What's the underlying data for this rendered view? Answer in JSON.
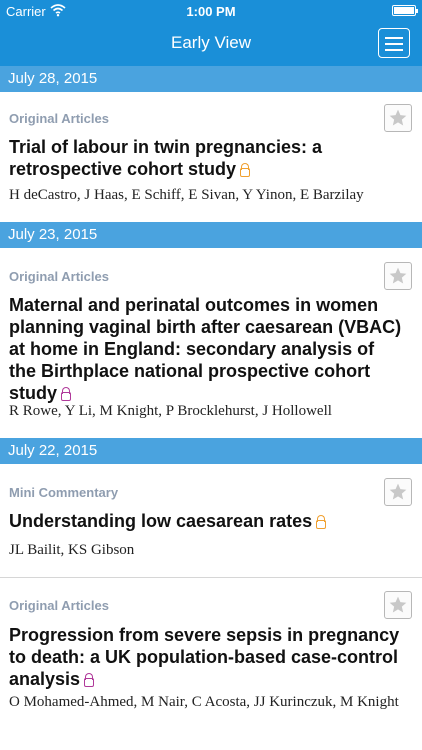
{
  "status_bar": {
    "carrier": "Carrier",
    "time": "1:00 PM"
  },
  "nav": {
    "title": "Early View",
    "menu_icon": "hamburger-menu-icon"
  },
  "sections": [
    {
      "date": "July 28, 2015"
    },
    {
      "date": "July 23, 2015"
    },
    {
      "date": "July 22, 2015"
    }
  ],
  "articles": [
    {
      "category": "Original Articles",
      "title": "Trial of labour in twin pregnancies: a retrospective cohort study",
      "lock_color": "#f0a030",
      "authors": "H deCastro, J Haas, E Schiff, E Sivan, Y Yinon, E Barzilay"
    },
    {
      "category": "Original Articles",
      "title": "Maternal and perinatal outcomes in women planning vaginal birth after caesarean (VBAC) at home in England: secondary analysis of the Birthplace national prospective cohort study",
      "lock_color": "#b0399a",
      "authors": "R Rowe, Y Li, M Knight, P Brocklehurst, J Hollowell"
    },
    {
      "category": "Mini Commentary",
      "title": "Understanding low caesarean rates",
      "lock_color": "#f0a030",
      "authors": "JL Bailit, KS Gibson"
    },
    {
      "category": "Original Articles",
      "title": "Progression from severe sepsis in pregnancy to death: a UK population-based case-control analysis",
      "lock_color": "#b0399a",
      "authors": "O Mohamed-Ahmed, M Nair, C Acosta, JJ Kurinczuk, M Knight"
    }
  ],
  "colors": {
    "nav_bg": "#1a8fd8",
    "date_header_bg": "#4aa3df",
    "category_text": "#8f9db0"
  }
}
